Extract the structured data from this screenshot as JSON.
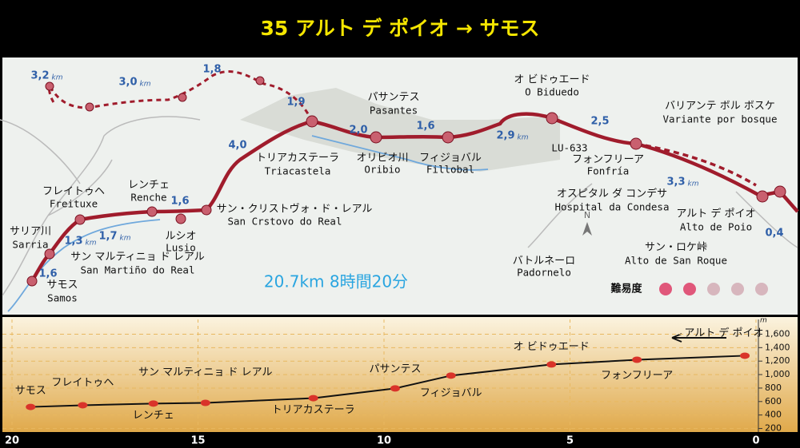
{
  "header": {
    "title": "35 アルト デ ポイオ → サモス"
  },
  "map": {
    "places": [
      {
        "ja": "サリア川",
        "local": "Sarria"
      },
      {
        "ja": "サモス",
        "local": "Samos"
      },
      {
        "ja": "サン マルティニョ ド レアル",
        "local": "San Martiño do Real"
      },
      {
        "ja": "フレイトゥヘ",
        "local": "Freituxe"
      },
      {
        "ja": "レンチェ",
        "local": "Renche"
      },
      {
        "ja": "ルシオ",
        "local": "Lusio"
      },
      {
        "ja": "サン・クリストヴォ・ド・レアル",
        "local": "San Crstovo do Real"
      },
      {
        "ja": "トリアカステーラ",
        "local": "Triacastela"
      },
      {
        "ja": "オリビオ川",
        "local": "Oribio"
      },
      {
        "ja": "パサンテス",
        "local": "Pasantes"
      },
      {
        "ja": "フィジョバル",
        "local": "Fillobal"
      },
      {
        "ja": "オ ビドゥエード",
        "local": "O Biduedo"
      },
      {
        "ja": "フォンフリーア",
        "local": "Fonfría"
      },
      {
        "ja": "バリアンテ ボル ボスケ",
        "local": "Variante por bosque"
      },
      {
        "ja": "オスピタル ダ コンデサ",
        "local": "Hospital da Condesa"
      },
      {
        "ja": "アルト デ ポイオ",
        "local": "Alto de Poio"
      },
      {
        "ja": "サン・ロケ峠",
        "local": "Alto de San Roque"
      },
      {
        "ja": "バトルネーロ",
        "local": "Padornelo"
      }
    ],
    "road": "LU-633",
    "compass": "N",
    "distances": [
      {
        "text": "3,2",
        "unit": "km"
      },
      {
        "text": "3,0",
        "unit": "km"
      },
      {
        "text": "1,8"
      },
      {
        "text": "1,9"
      },
      {
        "text": "4,0"
      },
      {
        "text": "2,0"
      },
      {
        "text": "1,6"
      },
      {
        "text": "2,9",
        "unit": "km"
      },
      {
        "text": "2,5"
      },
      {
        "text": "3,3",
        "unit": "km"
      },
      {
        "text": "0,4"
      },
      {
        "text": "1,6"
      },
      {
        "text": "1,7",
        "unit": "km"
      },
      {
        "text": "1,3",
        "unit": "km"
      },
      {
        "text": "1,6"
      }
    ],
    "summary": "20.7km 8時間20分",
    "difficulty_label": "難易度"
  },
  "profile": {
    "unit": "m",
    "xlim": [
      20.65,
      -0.1
    ],
    "xticks": [
      20,
      15,
      10,
      5,
      0
    ],
    "ylim": [
      100,
      1700
    ],
    "yticks": [
      {
        "value": 200,
        "label": "200"
      },
      {
        "value": 400,
        "label": "400"
      },
      {
        "value": 600,
        "label": "600"
      },
      {
        "value": 800,
        "label": "800"
      },
      {
        "value": 1000,
        "label": "1,000"
      },
      {
        "value": 1200,
        "label": "1,200"
      },
      {
        "value": 1400,
        "label": "1,400"
      },
      {
        "value": 1600,
        "label": "1,600"
      }
    ],
    "points": [
      {
        "name": "サモス",
        "km": 19.5,
        "elevation": 520
      },
      {
        "name": "フレイトゥヘ",
        "km": 18.1,
        "elevation": 545
      },
      {
        "name": "レンチェ",
        "km": 16.2,
        "elevation": 570
      },
      {
        "name": "サン マルティニョ ド レアル",
        "km": 14.8,
        "elevation": 580
      },
      {
        "name": "トリアカステーラ",
        "km": 11.9,
        "elevation": 650
      },
      {
        "name": "パサンテス",
        "km": 9.7,
        "elevation": 795
      },
      {
        "name": "フィジョバル",
        "km": 8.2,
        "elevation": 985
      },
      {
        "name": "オ ビドゥエード",
        "km": 5.5,
        "elevation": 1150
      },
      {
        "name": "フォンフリーア",
        "km": 3.2,
        "elevation": 1220
      },
      {
        "name": "アルト デ ポイオ",
        "km": 0.3,
        "elevation": 1280
      }
    ]
  }
}
